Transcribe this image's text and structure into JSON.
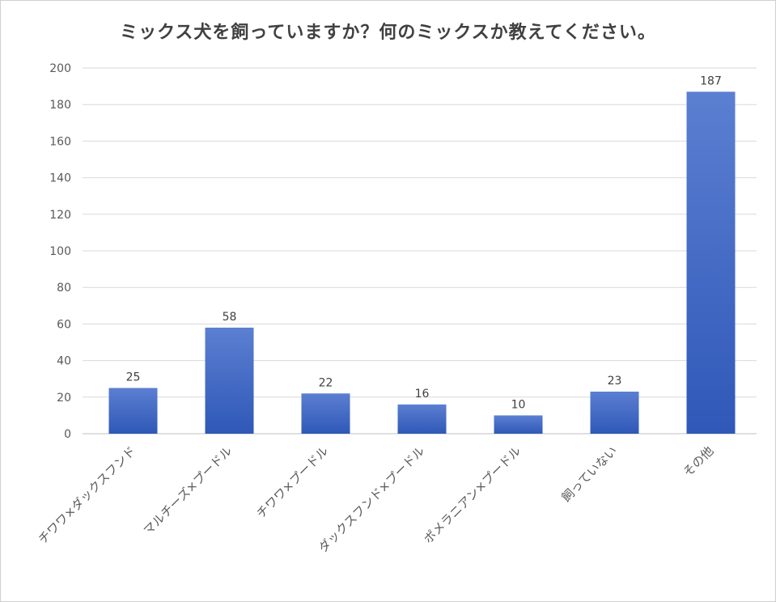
{
  "chart_data": {
    "type": "bar",
    "title": "ミックス犬を飼っていますか？何のミックスか教えてください。",
    "categories": [
      "チワワ×ダックスフンド",
      "マルチーズ×プードル",
      "チワワ×プードル",
      "ダックスフンド×プードル",
      "ポメラニアン×プードル",
      "飼っていない",
      "その他"
    ],
    "values": [
      25,
      58,
      22,
      16,
      10,
      23,
      187
    ],
    "ylim": [
      0,
      200
    ],
    "yticks": [
      0,
      20,
      40,
      60,
      80,
      100,
      120,
      140,
      160,
      180,
      200
    ],
    "grid": true,
    "bar_color_top": "#5b7fd1",
    "bar_color_bottom": "#2f58b8"
  }
}
